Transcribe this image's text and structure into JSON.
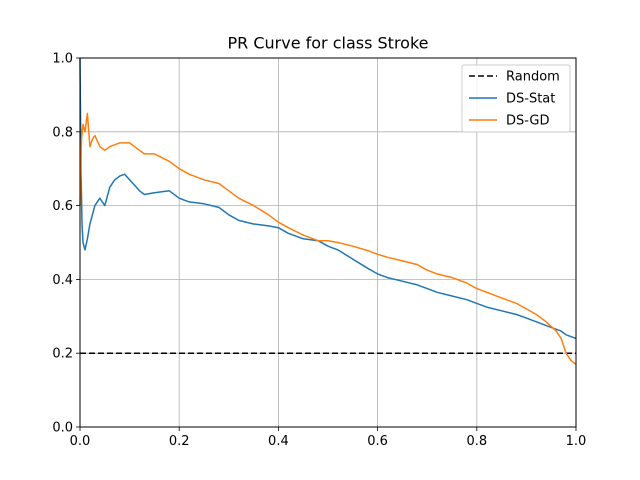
{
  "chart_data": {
    "type": "line",
    "title": "PR Curve for class Stroke",
    "xlabel": "",
    "ylabel": "",
    "xlim": [
      0,
      1
    ],
    "ylim": [
      0,
      1
    ],
    "xticks": [
      "0.0",
      "0.2",
      "0.4",
      "0.6",
      "0.8",
      "1.0"
    ],
    "yticks": [
      "0.0",
      "0.2",
      "0.4",
      "0.6",
      "0.8",
      "1.0"
    ],
    "grid": true,
    "legend_position": "top-right",
    "series": [
      {
        "name": "Random",
        "color": "#000000",
        "dash": true,
        "x": [
          0,
          1
        ],
        "y": [
          0.2,
          0.2
        ]
      },
      {
        "name": "DS-Stat",
        "color": "#1f77b4",
        "dash": false,
        "x": [
          0.0,
          0.002,
          0.004,
          0.006,
          0.01,
          0.015,
          0.02,
          0.03,
          0.04,
          0.05,
          0.06,
          0.07,
          0.08,
          0.09,
          0.1,
          0.11,
          0.12,
          0.13,
          0.15,
          0.18,
          0.2,
          0.22,
          0.25,
          0.28,
          0.3,
          0.32,
          0.35,
          0.38,
          0.4,
          0.42,
          0.45,
          0.48,
          0.5,
          0.52,
          0.55,
          0.58,
          0.6,
          0.62,
          0.65,
          0.68,
          0.7,
          0.72,
          0.75,
          0.78,
          0.8,
          0.82,
          0.85,
          0.88,
          0.9,
          0.92,
          0.95,
          0.97,
          0.98,
          1.0
        ],
        "y": [
          1.0,
          0.7,
          0.55,
          0.5,
          0.48,
          0.51,
          0.55,
          0.6,
          0.62,
          0.6,
          0.65,
          0.67,
          0.68,
          0.685,
          0.67,
          0.655,
          0.64,
          0.63,
          0.635,
          0.64,
          0.62,
          0.61,
          0.605,
          0.595,
          0.575,
          0.56,
          0.55,
          0.545,
          0.54,
          0.525,
          0.51,
          0.505,
          0.49,
          0.48,
          0.455,
          0.43,
          0.415,
          0.405,
          0.395,
          0.385,
          0.375,
          0.365,
          0.355,
          0.345,
          0.335,
          0.325,
          0.315,
          0.305,
          0.295,
          0.285,
          0.27,
          0.26,
          0.25,
          0.24
        ]
      },
      {
        "name": "DS-GD",
        "color": "#ff7f0e",
        "dash": false,
        "x": [
          0.0,
          0.003,
          0.006,
          0.01,
          0.015,
          0.02,
          0.025,
          0.03,
          0.04,
          0.05,
          0.06,
          0.08,
          0.1,
          0.12,
          0.13,
          0.15,
          0.18,
          0.2,
          0.22,
          0.25,
          0.28,
          0.3,
          0.32,
          0.35,
          0.38,
          0.4,
          0.42,
          0.45,
          0.48,
          0.5,
          0.52,
          0.55,
          0.58,
          0.6,
          0.62,
          0.65,
          0.68,
          0.7,
          0.72,
          0.75,
          0.78,
          0.8,
          0.82,
          0.85,
          0.88,
          0.9,
          0.92,
          0.94,
          0.96,
          0.97,
          0.98,
          0.99,
          1.0
        ],
        "y": [
          0.6,
          0.78,
          0.82,
          0.8,
          0.85,
          0.76,
          0.78,
          0.79,
          0.76,
          0.75,
          0.76,
          0.77,
          0.77,
          0.75,
          0.74,
          0.74,
          0.72,
          0.7,
          0.685,
          0.67,
          0.66,
          0.64,
          0.62,
          0.6,
          0.575,
          0.555,
          0.54,
          0.52,
          0.505,
          0.505,
          0.5,
          0.49,
          0.478,
          0.468,
          0.46,
          0.45,
          0.44,
          0.425,
          0.415,
          0.405,
          0.39,
          0.375,
          0.365,
          0.35,
          0.335,
          0.32,
          0.305,
          0.285,
          0.26,
          0.24,
          0.2,
          0.18,
          0.17
        ]
      }
    ]
  }
}
